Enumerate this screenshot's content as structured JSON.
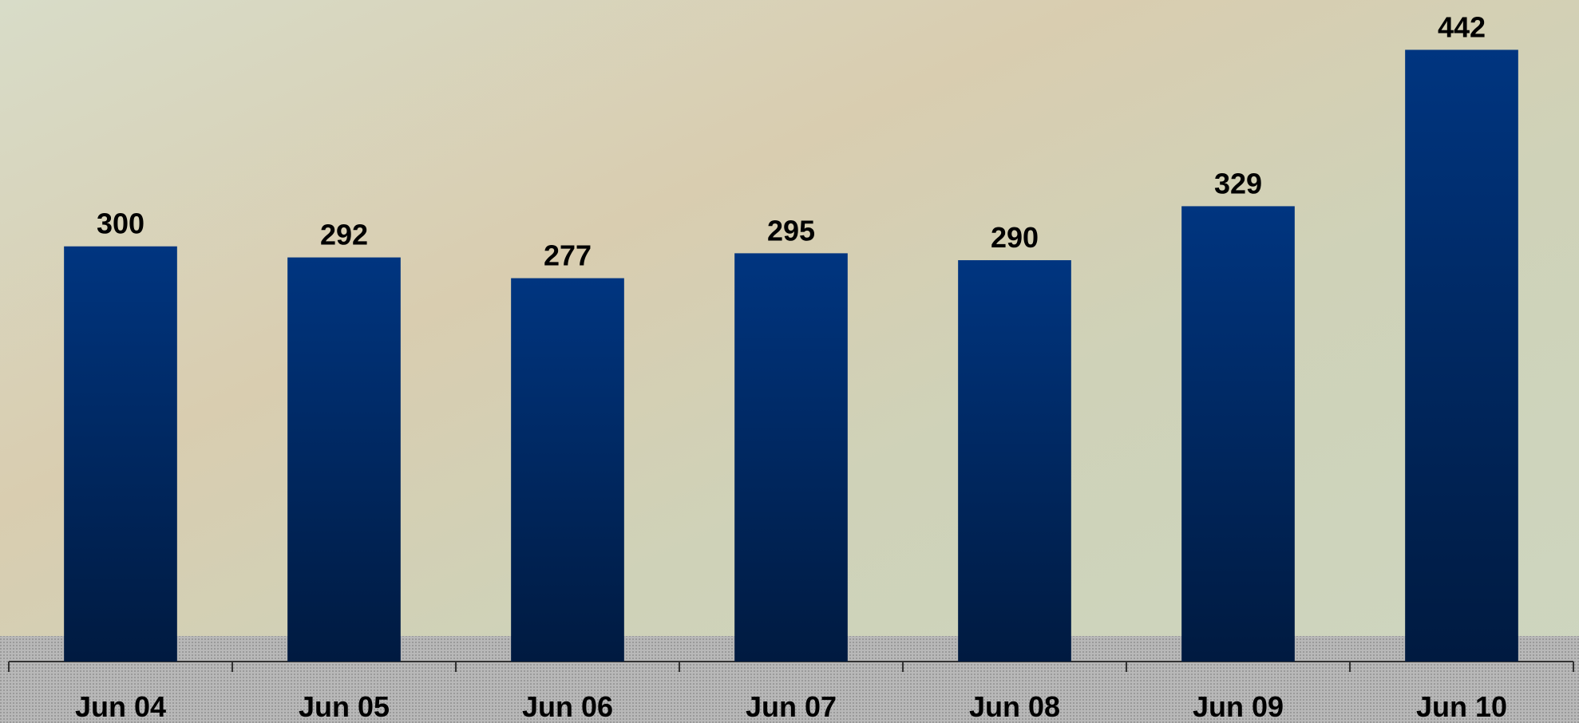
{
  "chart_data": {
    "type": "bar",
    "categories": [
      "Jun 04",
      "Jun 05",
      "Jun 06",
      "Jun 07",
      "Jun 08",
      "Jun 09",
      "Jun 10"
    ],
    "values": [
      300,
      292,
      277,
      295,
      290,
      329,
      442
    ],
    "color": "#00337a",
    "ylim": [
      0,
      478
    ]
  }
}
